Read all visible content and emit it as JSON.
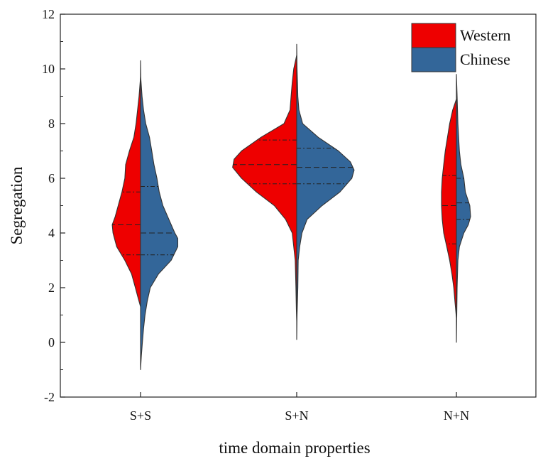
{
  "chart_data": {
    "type": "violin",
    "xlabel": "time domain properties",
    "ylabel": "Segregation",
    "ylim": [
      -2,
      12
    ],
    "yticks": [
      -2,
      0,
      2,
      4,
      6,
      8,
      10,
      12
    ],
    "categories": [
      "S+S",
      "S+N",
      "N+N"
    ],
    "legend_position": "top-right",
    "grid": false,
    "series": [
      {
        "name": "Western",
        "color": "#ee0000",
        "side": "left",
        "groups": [
          {
            "category": "S+S",
            "range": [
              1.3,
              9.7
            ],
            "quartiles": [
              3.2,
              4.3,
              5.5
            ],
            "profile": [
              [
                1.3,
                0
              ],
              [
                1.6,
                0.03
              ],
              [
                2.0,
                0.07
              ],
              [
                2.5,
                0.12
              ],
              [
                3.0,
                0.21
              ],
              [
                3.5,
                0.32
              ],
              [
                4.0,
                0.37
              ],
              [
                4.3,
                0.38
              ],
              [
                4.6,
                0.34
              ],
              [
                5.0,
                0.3
              ],
              [
                5.5,
                0.25
              ],
              [
                6.0,
                0.21
              ],
              [
                6.5,
                0.2
              ],
              [
                7.0,
                0.15
              ],
              [
                7.5,
                0.09
              ],
              [
                8.0,
                0.06
              ],
              [
                8.5,
                0.04
              ],
              [
                9.0,
                0.02
              ],
              [
                9.7,
                0
              ]
            ]
          },
          {
            "category": "S+N",
            "range": [
              0.8,
              10.5
            ],
            "quartiles": [
              5.8,
              6.5,
              7.4
            ],
            "profile": [
              [
                0.8,
                0
              ],
              [
                1.2,
                0.005
              ],
              [
                2.0,
                0.01
              ],
              [
                3.0,
                0.02
              ],
              [
                4.0,
                0.06
              ],
              [
                4.5,
                0.15
              ],
              [
                5.0,
                0.3
              ],
              [
                5.5,
                0.54
              ],
              [
                6.0,
                0.74
              ],
              [
                6.4,
                0.86
              ],
              [
                6.7,
                0.84
              ],
              [
                7.0,
                0.74
              ],
              [
                7.5,
                0.48
              ],
              [
                8.0,
                0.17
              ],
              [
                8.5,
                0.09
              ],
              [
                9.0,
                0.075
              ],
              [
                9.5,
                0.06
              ],
              [
                10.0,
                0.04
              ],
              [
                10.5,
                0
              ]
            ]
          },
          {
            "category": "N+N",
            "range": [
              0.9,
              8.9
            ],
            "quartiles": [
              3.6,
              5.0,
              6.1
            ],
            "profile": [
              [
                0.9,
                0
              ],
              [
                1.5,
                0.02
              ],
              [
                2.0,
                0.035
              ],
              [
                2.5,
                0.06
              ],
              [
                3.0,
                0.09
              ],
              [
                3.5,
                0.13
              ],
              [
                4.0,
                0.17
              ],
              [
                4.5,
                0.19
              ],
              [
                5.0,
                0.2
              ],
              [
                5.5,
                0.2
              ],
              [
                6.0,
                0.19
              ],
              [
                6.5,
                0.17
              ],
              [
                7.0,
                0.15
              ],
              [
                7.5,
                0.12
              ],
              [
                8.0,
                0.09
              ],
              [
                8.5,
                0.05
              ],
              [
                8.9,
                0
              ]
            ]
          }
        ]
      },
      {
        "name": "Chinese",
        "color": "#336699",
        "side": "right",
        "groups": [
          {
            "category": "S+S",
            "range": [
              -1.0,
              10.3
            ],
            "quartiles": [
              3.2,
              4.0,
              5.7
            ],
            "profile": [
              [
                -1.0,
                0
              ],
              [
                -0.5,
                0.01
              ],
              [
                0.0,
                0.025
              ],
              [
                0.5,
                0.04
              ],
              [
                1.0,
                0.06
              ],
              [
                1.5,
                0.09
              ],
              [
                2.0,
                0.13
              ],
              [
                2.5,
                0.24
              ],
              [
                3.0,
                0.41
              ],
              [
                3.5,
                0.5
              ],
              [
                3.8,
                0.5
              ],
              [
                4.0,
                0.46
              ],
              [
                4.5,
                0.38
              ],
              [
                5.0,
                0.3
              ],
              [
                5.5,
                0.25
              ],
              [
                6.0,
                0.22
              ],
              [
                6.5,
                0.18
              ],
              [
                7.0,
                0.15
              ],
              [
                7.5,
                0.12
              ],
              [
                8.0,
                0.07
              ],
              [
                8.5,
                0.04
              ],
              [
                9.0,
                0.02
              ],
              [
                9.6,
                0.005
              ],
              [
                10.3,
                0
              ]
            ]
          },
          {
            "category": "S+N",
            "range": [
              0.1,
              10.9
            ],
            "quartiles": [
              5.8,
              6.4,
              7.1
            ],
            "profile": [
              [
                0.1,
                0
              ],
              [
                1.0,
                0.005
              ],
              [
                2.0,
                0.015
              ],
              [
                3.0,
                0.02
              ],
              [
                3.5,
                0.04
              ],
              [
                4.0,
                0.07
              ],
              [
                4.5,
                0.14
              ],
              [
                5.0,
                0.34
              ],
              [
                5.5,
                0.58
              ],
              [
                6.0,
                0.74
              ],
              [
                6.3,
                0.77
              ],
              [
                6.6,
                0.72
              ],
              [
                7.0,
                0.56
              ],
              [
                7.5,
                0.29
              ],
              [
                8.0,
                0.08
              ],
              [
                8.5,
                0.03
              ],
              [
                9.0,
                0.015
              ],
              [
                9.5,
                0.01
              ],
              [
                10.0,
                0.005
              ],
              [
                10.9,
                0
              ]
            ]
          },
          {
            "category": "N+N",
            "range": [
              0.0,
              9.8
            ],
            "quartiles": [
              4.5,
              5.1,
              6.0
            ],
            "profile": [
              [
                0.0,
                0
              ],
              [
                1.0,
                0.005
              ],
              [
                2.0,
                0.01
              ],
              [
                3.0,
                0.02
              ],
              [
                3.5,
                0.04
              ],
              [
                4.0,
                0.1
              ],
              [
                4.3,
                0.16
              ],
              [
                4.6,
                0.19
              ],
              [
                5.0,
                0.18
              ],
              [
                5.5,
                0.12
              ],
              [
                6.0,
                0.1
              ],
              [
                6.5,
                0.06
              ],
              [
                7.0,
                0.04
              ],
              [
                8.0,
                0.02
              ],
              [
                9.0,
                0.01
              ],
              [
                9.8,
                0
              ]
            ]
          }
        ]
      }
    ]
  }
}
